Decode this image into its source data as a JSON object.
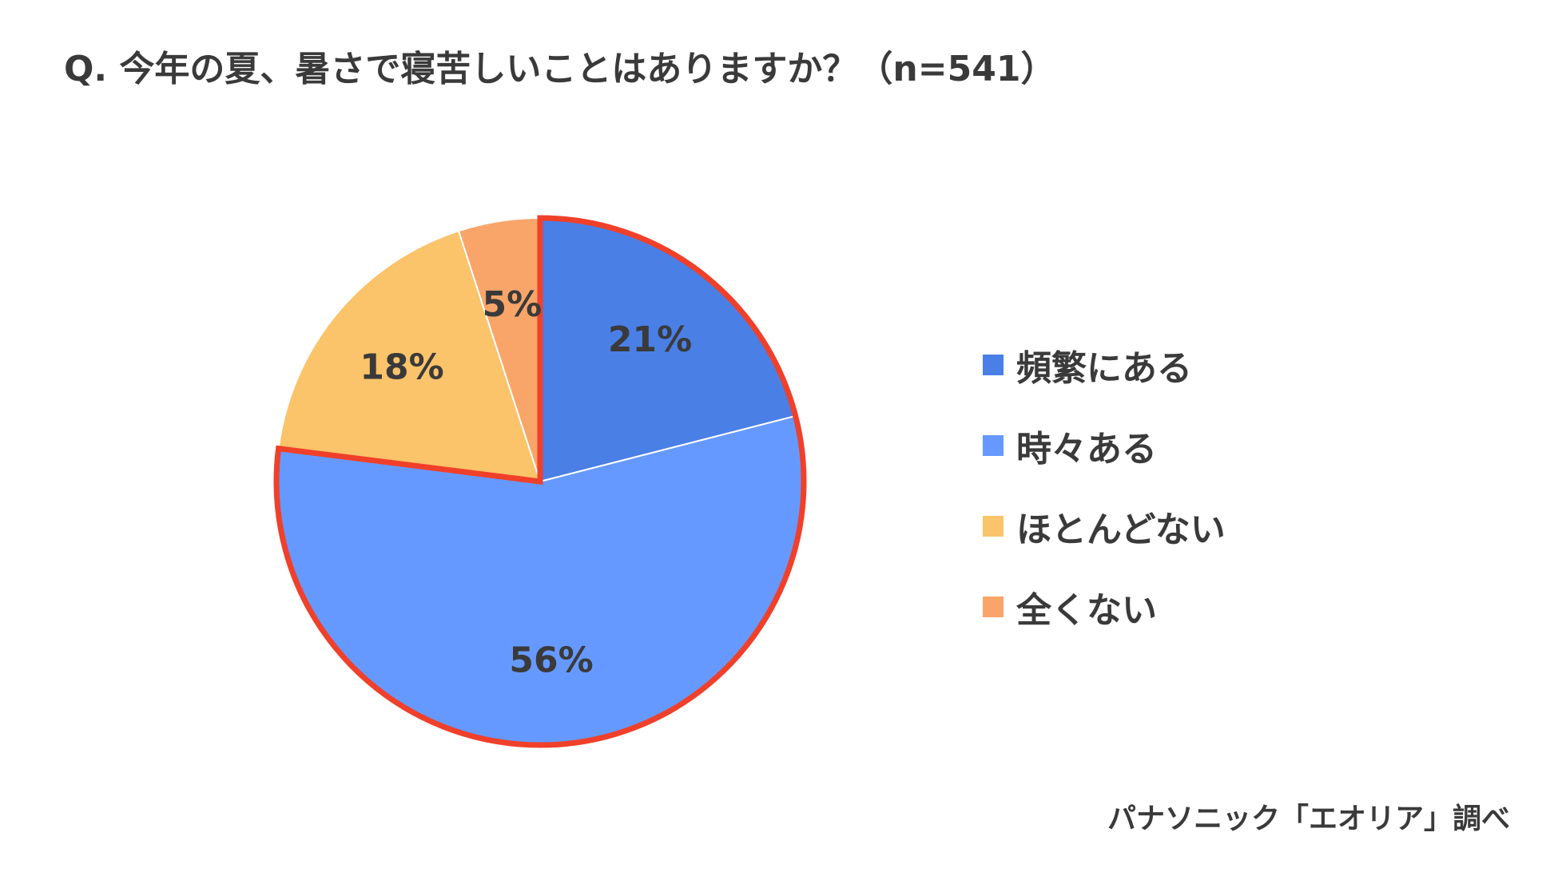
{
  "title": "Q. 今年の夏、暑さで寝苦しいことはありますか？（n=541）",
  "source": "パナソニック「エオリア」調べ",
  "chart_data": {
    "type": "pie",
    "title": "Q. 今年の夏、暑さで寝苦しいことはありますか？（n=541）",
    "unit": "%",
    "slices": [
      {
        "label": "頻繁にある",
        "value": 21,
        "display": "21%",
        "color": "#4a7fe6"
      },
      {
        "label": "時々ある",
        "value": 56,
        "display": "56%",
        "color": "#6699ff"
      },
      {
        "label": "ほとんどない",
        "value": 18,
        "display": "18%",
        "color": "#fbc36a"
      },
      {
        "label": "全くない",
        "value": 5,
        "display": "5%",
        "color": "#f9a56a"
      }
    ],
    "start_angle": "12 o'clock, clockwise",
    "highlight": {
      "slices": [
        "頻繁にある",
        "時々ある"
      ],
      "outline_color": "#f0402a"
    },
    "legend_position": "right"
  }
}
